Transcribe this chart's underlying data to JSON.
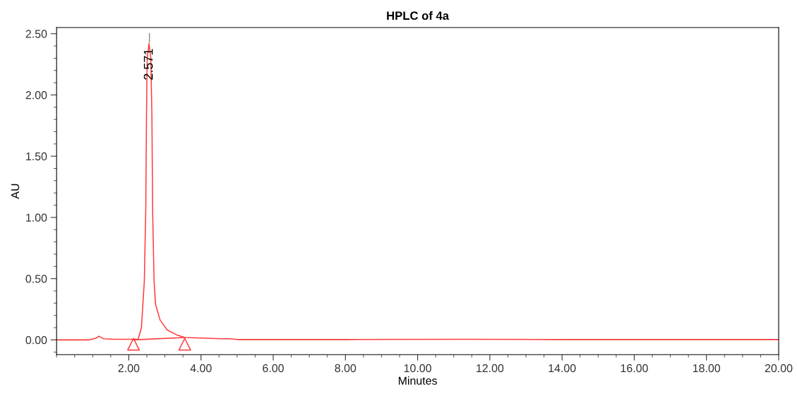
{
  "chart_data": {
    "type": "line",
    "title": "HPLC of 4a",
    "xlabel": "Minutes",
    "ylabel": "AU",
    "xlim": [
      0,
      20
    ],
    "ylim": [
      -0.12,
      2.55
    ],
    "xticks": [
      {
        "value": 2,
        "label": "2.00"
      },
      {
        "value": 4,
        "label": "4.00"
      },
      {
        "value": 6,
        "label": "6.00"
      },
      {
        "value": 8,
        "label": "8.00"
      },
      {
        "value": 10,
        "label": "10.00"
      },
      {
        "value": 12,
        "label": "12.00"
      },
      {
        "value": 14,
        "label": "14.00"
      },
      {
        "value": 16,
        "label": "16.00"
      },
      {
        "value": 18,
        "label": "18.00"
      },
      {
        "value": 20,
        "label": "20.00"
      }
    ],
    "yticks": [
      {
        "value": 0,
        "label": "0.00"
      },
      {
        "value": 0.5,
        "label": "0.50"
      },
      {
        "value": 1,
        "label": "1.00"
      },
      {
        "value": 1.5,
        "label": "1.50"
      },
      {
        "value": 2,
        "label": "2.00"
      },
      {
        "value": 2.5,
        "label": "2.50"
      }
    ],
    "grid": false,
    "legend": false,
    "series": [
      {
        "color": "#ff3b3b",
        "x": [
          0,
          0.9,
          1.1,
          1.17,
          1.3,
          1.6,
          2.0,
          2.26,
          2.35,
          2.43,
          2.47,
          2.49,
          2.51,
          2.56,
          2.61,
          2.64,
          2.66,
          2.7,
          2.74,
          2.87,
          3.07,
          3.33,
          3.56,
          4.0,
          4.56,
          4.8,
          5.0,
          8.0,
          11.3,
          14.0,
          20.0
        ],
        "values": [
          0,
          0,
          0.015,
          0.03,
          0.01,
          0.005,
          0.005,
          0.005,
          0.1,
          0.48,
          1.06,
          1.83,
          2.3,
          2.42,
          2.3,
          1.83,
          1.06,
          0.48,
          0.29,
          0.16,
          0.08,
          0.04,
          0.02,
          0.015,
          0.01,
          0.01,
          0.003,
          0.003,
          0.005,
          0.003,
          0.003
        ]
      },
      {
        "color": "#ff3b3b",
        "x": [
          2.13,
          3.55
        ],
        "values": [
          0.0,
          0.02
        ]
      },
      {
        "type": "scatter",
        "color": "#ff3b3b",
        "marker": "triangle",
        "x": [
          2.13,
          3.55
        ],
        "values": [
          -0.035,
          -0.035
        ]
      }
    ],
    "annotations": [
      {
        "text": "2.571",
        "x": 2.571,
        "y": 2.43
      }
    ]
  }
}
